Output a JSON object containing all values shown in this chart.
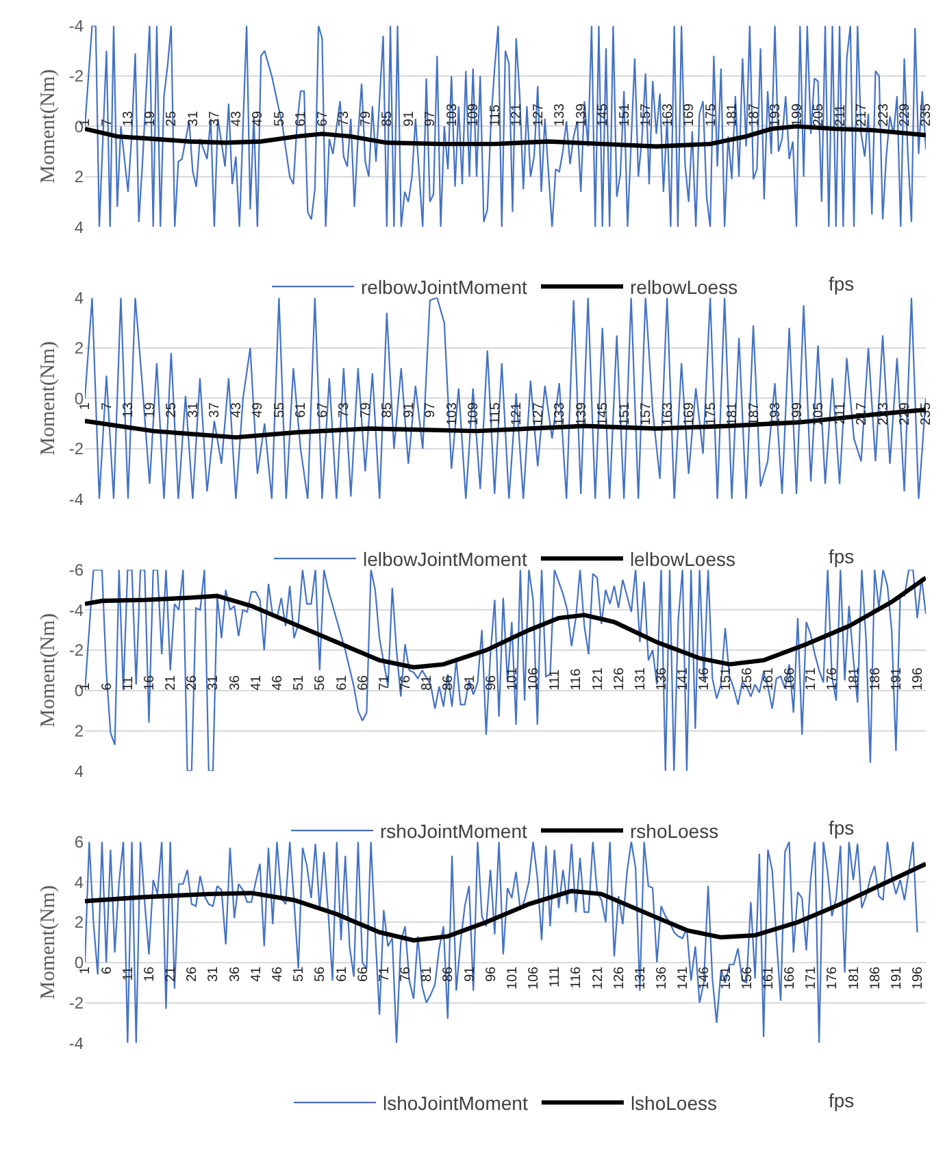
{
  "chart_data": [
    {
      "type": "line",
      "ylabel": "Moment(Nm)",
      "xlabel": "fps",
      "grid": "y",
      "legend": "bottom",
      "xlim": [
        1,
        235
      ],
      "ylim": [
        4,
        -4
      ],
      "yticks": [
        -4,
        -2,
        0,
        2,
        4
      ],
      "xticks": [
        1,
        7,
        13,
        19,
        25,
        31,
        37,
        43,
        49,
        55,
        61,
        67,
        73,
        79,
        85,
        91,
        97,
        103,
        109,
        115,
        121,
        127,
        133,
        139,
        145,
        151,
        157,
        163,
        169,
        175,
        181,
        187,
        193,
        199,
        205,
        211,
        217,
        223,
        229,
        235
      ],
      "series": [
        {
          "name": "relbowJointMoment",
          "color": "#4472c4",
          "x": [
            1,
            3,
            4,
            5,
            6,
            7,
            8,
            9,
            10,
            11,
            13,
            14,
            15,
            16,
            17,
            19,
            20,
            21,
            22,
            23,
            24,
            25,
            26,
            27,
            28,
            30,
            31,
            32,
            33,
            35,
            36,
            37,
            38,
            40,
            41,
            42,
            43,
            44,
            46,
            47,
            48,
            49,
            50,
            51,
            53,
            56,
            58,
            59,
            60,
            61,
            62,
            63,
            64,
            65,
            66,
            67,
            68,
            69,
            70,
            72,
            73,
            74,
            75,
            76,
            77,
            78,
            79,
            80,
            81,
            82,
            84,
            85,
            86,
            87,
            88,
            89,
            90,
            91,
            92,
            93,
            95,
            96,
            97,
            98,
            99,
            100,
            101,
            102,
            103,
            104,
            105,
            106,
            107,
            108,
            109,
            110,
            111,
            112,
            113,
            114,
            115,
            116,
            117,
            118,
            119,
            120,
            121,
            122,
            123,
            124,
            125,
            126,
            127,
            128,
            129,
            131,
            132,
            133,
            134,
            135,
            136,
            137,
            138,
            139,
            140,
            141,
            142,
            143,
            144,
            145,
            146,
            147,
            148,
            149,
            150,
            151,
            152,
            153,
            154,
            155,
            156,
            157,
            158,
            159,
            160,
            161,
            162,
            163,
            164,
            165,
            166,
            167,
            168,
            169,
            170,
            171,
            172,
            173,
            174,
            175,
            176,
            177,
            178,
            179,
            180,
            181,
            182,
            183,
            184,
            185,
            186,
            187,
            188,
            189,
            190,
            191,
            192,
            193,
            194,
            195,
            196,
            197,
            198,
            199,
            200,
            201,
            202,
            203,
            204,
            205,
            206,
            207,
            208,
            209,
            210,
            211,
            212,
            213,
            214,
            215,
            216,
            217,
            218,
            219,
            220,
            221,
            222,
            223,
            224,
            225,
            226,
            227,
            228,
            229,
            230,
            231,
            232,
            233,
            234,
            235
          ],
          "values": [
            0,
            -4,
            -4,
            4,
            0.5,
            -3,
            4,
            -4,
            3.2,
            0,
            2.6,
            0.4,
            -2.9,
            3.8,
            1.5,
            -4,
            4,
            -4,
            4,
            -1.2,
            -2.4,
            -4,
            4,
            1.4,
            1.3,
            -0.2,
            1.8,
            2.4,
            0.5,
            1.3,
            -0.3,
            4,
            -0.3,
            1.6,
            -0.9,
            2.3,
            1.2,
            4,
            -4,
            3.3,
            -0.4,
            4,
            -2.8,
            -3,
            -2,
            0,
            2,
            2.3,
            0,
            -1.4,
            -1.4,
            3.4,
            3.7,
            2.5,
            -4,
            -3.5,
            4,
            0.5,
            1.1,
            -1,
            1.2,
            1.6,
            -0.3,
            3.2,
            0.4,
            -1.7,
            1.4,
            2,
            -0.8,
            1.4,
            -3.6,
            4,
            -4,
            4,
            -4,
            4,
            2.6,
            3,
            2,
            -0.3,
            4,
            -1.9,
            3,
            2.7,
            -2.8,
            4,
            0,
            1.7,
            -2,
            2.4,
            -0.8,
            2.3,
            -2.2,
            2,
            -2.3,
            2,
            -2,
            3.8,
            3.3,
            -0.2,
            -2.3,
            -4,
            4,
            -3,
            -2.5,
            3.4,
            -3.5,
            -1.2,
            2.5,
            -0.8,
            2,
            1.2,
            -1.6,
            2.6,
            -0.3,
            4,
            1.7,
            1.8,
            1,
            -0.2,
            1.5,
            0.4,
            -0.2,
            2.6,
            -1,
            0.8,
            -4,
            4,
            -4,
            4,
            -3.1,
            4,
            -4,
            2.8,
            1.9,
            -1.4,
            4,
            0.6,
            -2.7,
            2,
            0.5,
            -2.1,
            2.3,
            -1.8,
            0.3,
            -1.3,
            2.6,
            -0.3,
            4,
            -4,
            4,
            -4,
            1.5,
            3,
            0.2,
            4,
            -0.5,
            -1,
            2.8,
            4,
            -2.8,
            1.6,
            -2.3,
            4,
            0.4,
            2.1,
            -1.2,
            2,
            -2.7,
            0.8,
            -4,
            2.1,
            1.7,
            -3.1,
            2.9,
            -1.4,
            1.1,
            -4,
            1,
            0.5,
            -1.2,
            1.3,
            0.6,
            4,
            -4,
            2,
            -4,
            0.3,
            -1.9,
            -1.8,
            3,
            -4,
            4,
            -4,
            4,
            -4,
            4,
            -2.7,
            -4,
            4,
            -4,
            0.3,
            1.2,
            -0.5,
            3.5,
            -2.2,
            -2,
            3.7,
            1.2,
            -0.4,
            0.3,
            -1.2,
            4,
            -2.7,
            1.1,
            3.8,
            -3.9,
            1.1,
            -1.4,
            0.9
          ]
        },
        {
          "name": "relbowLoess",
          "color": "#000000",
          "x": [
            1,
            10,
            20,
            30,
            40,
            50,
            60,
            67,
            75,
            85,
            100,
            115,
            130,
            145,
            160,
            175,
            185,
            192,
            199,
            210,
            220,
            235
          ],
          "values": [
            0.1,
            0.4,
            0.5,
            0.6,
            0.65,
            0.6,
            0.4,
            0.3,
            0.4,
            0.65,
            0.7,
            0.7,
            0.6,
            0.7,
            0.8,
            0.7,
            0.4,
            0.1,
            0,
            0.1,
            0.15,
            0.35
          ]
        }
      ]
    },
    {
      "type": "line",
      "ylabel": "Moment(Nm)",
      "xlabel": "fps",
      "grid": "y",
      "legend": "bottom",
      "xlim": [
        1,
        235
      ],
      "ylim": [
        -4,
        4
      ],
      "yticks": [
        -4,
        -2,
        0,
        2,
        4
      ],
      "xticks": [
        1,
        7,
        13,
        19,
        25,
        31,
        37,
        43,
        49,
        55,
        61,
        67,
        73,
        79,
        85,
        91,
        97,
        103,
        109,
        115,
        121,
        127,
        133,
        139,
        145,
        151,
        157,
        163,
        169,
        175,
        181,
        187,
        193,
        199,
        205,
        211,
        217,
        223,
        229,
        235
      ],
      "series": [
        {
          "name": "lelbowJointMoment",
          "color": "#4472c4",
          "x": [
            1,
            3,
            5,
            7,
            9,
            11,
            13,
            15,
            17,
            19,
            21,
            23,
            25,
            27,
            29,
            31,
            33,
            35,
            37,
            39,
            41,
            43,
            45,
            47,
            49,
            51,
            53,
            55,
            57,
            59,
            61,
            63,
            65,
            67,
            69,
            71,
            73,
            75,
            77,
            79,
            81,
            83,
            85,
            87,
            89,
            91,
            93,
            95,
            97,
            99,
            101,
            103,
            105,
            107,
            109,
            111,
            113,
            115,
            117,
            119,
            121,
            123,
            125,
            127,
            129,
            131,
            133,
            135,
            137,
            139,
            141,
            143,
            145,
            147,
            149,
            151,
            153,
            155,
            157,
            159,
            161,
            163,
            165,
            167,
            169,
            171,
            173,
            175,
            177,
            179,
            181,
            183,
            185,
            187,
            189,
            191,
            193,
            195,
            197,
            199,
            201,
            203,
            205,
            207,
            209,
            211,
            213,
            215,
            217,
            219,
            221,
            223,
            225,
            227,
            229,
            231,
            233,
            235
          ],
          "values": [
            0,
            4,
            -4,
            0.9,
            -4,
            4,
            -4,
            4,
            0.5,
            -3.4,
            1.4,
            -4,
            1.8,
            -4,
            0.1,
            -4,
            0.8,
            -3.7,
            -0.9,
            -2.6,
            0.8,
            -4,
            0,
            2,
            -3,
            -1,
            -4,
            4,
            -4,
            1.2,
            -2,
            -4,
            4,
            -4,
            0.8,
            -4,
            1.2,
            -3.9,
            1.2,
            -2.9,
            1,
            -4,
            3.4,
            -2,
            1.2,
            -2.6,
            0.5,
            -2,
            3.9,
            4,
            3,
            -2.8,
            0.4,
            -4,
            0.4,
            -3.6,
            1.9,
            -3.8,
            1.4,
            -4,
            0.2,
            -4,
            0.7,
            -2.7,
            0.5,
            -1.6,
            0.6,
            -4,
            3.9,
            -3.8,
            4,
            -4,
            2.8,
            -4,
            2.5,
            -4,
            4,
            -4,
            4,
            -0.5,
            -3.2,
            4,
            -4,
            1.4,
            -3,
            0.4,
            -2.2,
            4,
            -4,
            4,
            -4,
            2.4,
            -4,
            2.9,
            -3.5,
            -2.5,
            0.6,
            -3.8,
            2.8,
            -3.8,
            3.7,
            -3.3,
            2.1,
            -3.4,
            0.8,
            -3.4,
            1.6,
            -1.6,
            -2.5,
            2,
            -2.5,
            2.5,
            -2.6,
            1.6,
            -3.7,
            4,
            -4,
            0
          ]
        },
        {
          "name": "lelbowLoess",
          "color": "#000000",
          "x": [
            1,
            20,
            43,
            60,
            80,
            110,
            140,
            160,
            180,
            200,
            220,
            235
          ],
          "values": [
            -0.9,
            -1.3,
            -1.55,
            -1.35,
            -1.2,
            -1.3,
            -1.1,
            -1.2,
            -1.1,
            -0.95,
            -0.65,
            -0.45
          ]
        }
      ]
    },
    {
      "type": "line",
      "ylabel": "Moment(Nm)",
      "xlabel": "fps",
      "grid": "y",
      "legend": "bottom",
      "xlim": [
        1,
        198
      ],
      "ylim": [
        4,
        -6
      ],
      "yticks": [
        -6,
        -4,
        -2,
        0,
        2,
        4
      ],
      "xticks": [
        1,
        6,
        11,
        16,
        21,
        26,
        31,
        36,
        41,
        46,
        51,
        56,
        61,
        66,
        71,
        76,
        81,
        86,
        91,
        96,
        101,
        106,
        111,
        116,
        121,
        126,
        131,
        136,
        141,
        146,
        151,
        156,
        161,
        166,
        171,
        176,
        181,
        186,
        191,
        196
      ],
      "series": [
        {
          "name": "rshoJointMoment",
          "color": "#4472c4",
          "x": [
            1,
            3,
            5,
            6,
            7,
            8,
            9,
            10,
            11,
            12,
            13,
            14,
            15,
            16,
            17,
            18,
            19,
            20,
            21,
            22,
            23,
            24,
            25,
            26,
            27,
            28,
            29,
            30,
            31,
            32,
            33,
            34,
            35,
            36,
            37,
            38,
            39,
            40,
            41,
            42,
            43,
            44,
            45,
            46,
            47,
            48,
            49,
            50,
            51,
            52,
            53,
            54,
            55,
            56,
            57,
            58,
            60,
            62,
            64,
            65,
            66,
            67,
            68,
            69,
            70,
            72,
            73,
            74,
            75,
            76,
            77,
            78,
            79,
            80,
            82,
            83,
            84,
            85,
            86,
            87,
            88,
            89,
            90,
            91,
            92,
            93,
            94,
            95,
            96,
            97,
            98,
            99,
            100,
            101,
            102,
            103,
            104,
            105,
            106,
            107,
            108,
            109,
            110,
            111,
            112,
            113,
            114,
            115,
            116,
            117,
            118,
            119,
            120,
            121,
            122,
            123,
            124,
            125,
            126,
            127,
            128,
            129,
            130,
            131,
            132,
            133,
            134,
            135,
            136,
            137,
            138,
            139,
            140,
            141,
            142,
            143,
            144,
            145,
            146,
            147,
            148,
            149,
            150,
            151,
            152,
            153,
            154,
            155,
            156,
            157,
            158,
            159,
            160,
            161,
            162,
            163,
            164,
            165,
            166,
            167,
            168,
            169,
            170,
            171,
            172,
            173,
            174,
            175,
            176,
            177,
            178,
            179,
            180,
            181,
            182,
            183,
            184,
            185,
            186,
            187,
            188,
            189,
            190,
            191,
            192,
            193,
            194,
            195,
            196,
            197,
            198
          ],
          "values": [
            0,
            -6,
            -6,
            -1,
            2.1,
            2.7,
            -6,
            0,
            -6,
            -6,
            -0.3,
            -6,
            -6,
            1.6,
            -6,
            -6,
            -1.8,
            -6,
            -1,
            -4.3,
            -4,
            -6,
            4,
            4,
            -4.1,
            -4,
            -6,
            4,
            4,
            -4.7,
            -2.6,
            -5,
            -4,
            -4.2,
            -2.7,
            -4,
            -3.9,
            -4.9,
            -4.9,
            -4.5,
            -2,
            -5.3,
            -3.7,
            -3.6,
            -4.6,
            -3.2,
            -5.2,
            -2.6,
            -3.3,
            -6,
            -4.3,
            -4.3,
            -6,
            -1,
            -6,
            -5,
            -3.5,
            -2,
            -0.2,
            1,
            1.5,
            1.1,
            -6,
            -5,
            -2.6,
            -0.2,
            -5.1,
            -2,
            0.3,
            -2.3,
            -1,
            -0.9,
            -0.6,
            -1,
            -0.3,
            0.9,
            -0.2,
            0.8,
            -0.8,
            0.8,
            -1.5,
            0.7,
            0.7,
            -0.5,
            0.2,
            -0.4,
            -3,
            2.2,
            -1.8,
            -4.5,
            1.3,
            -4.6,
            -0.4,
            -3.4,
            1.7,
            -6,
            0.5,
            -6,
            -4.5,
            1.7,
            -6,
            -0.7,
            -0.8,
            -6,
            -5.4,
            -4.8,
            -4,
            -2.2,
            -3.6,
            -6,
            -3.2,
            -1.8,
            -5.8,
            -5.6,
            -3.3,
            -5,
            -4.3,
            -5.2,
            -4.1,
            -5.5,
            -4.7,
            -3.9,
            -6,
            -2.4,
            -5.4,
            -1.5,
            -2,
            -0.3,
            -6,
            4,
            -6,
            4,
            -3.5,
            -6,
            4,
            -6,
            1.9,
            -6,
            -0.5,
            -6,
            -0.6,
            0.4,
            -0.3,
            -3.1,
            -0.7,
            -0.1,
            0.7,
            -0.4,
            -0.2,
            0.3,
            -0.3,
            0.1,
            -0.9,
            -0.2,
            0.9,
            -0.6,
            -0.7,
            -0.1,
            -1.3,
            1.1,
            -3.6,
            2.2,
            -3.4,
            -2.8,
            -1.8,
            -1,
            -0.4,
            -6,
            -0.7,
            0.5,
            -6,
            -0.5,
            -4.2,
            -1.6,
            0.6,
            -6,
            -2.5,
            3.6,
            -6,
            -4.1,
            -6,
            -5.2,
            -3,
            3,
            -4.7,
            -4.7,
            -6,
            -6,
            -3.6,
            -5.6,
            -3.8
          ]
        },
        {
          "name": "rshoLoess",
          "color": "#000000",
          "x": [
            1,
            5,
            15,
            25,
            32,
            40,
            50,
            60,
            70,
            78,
            85,
            95,
            105,
            112,
            118,
            125,
            135,
            145,
            152,
            160,
            170,
            180,
            190,
            198
          ],
          "values": [
            -4.3,
            -4.45,
            -4.5,
            -4.6,
            -4.7,
            -4.2,
            -3.3,
            -2.4,
            -1.5,
            -1.15,
            -1.3,
            -2,
            -3,
            -3.6,
            -3.75,
            -3.4,
            -2.4,
            -1.6,
            -1.3,
            -1.5,
            -2.3,
            -3.2,
            -4.4,
            -5.6
          ]
        }
      ]
    },
    {
      "type": "line",
      "ylabel": "Moment(Nm)",
      "xlabel": "fps",
      "grid": "y",
      "legend": "bottom",
      "xlim": [
        1,
        198
      ],
      "ylim": [
        -4,
        6
      ],
      "yticks": [
        -4,
        -2,
        0,
        2,
        4,
        6
      ],
      "xticks": [
        1,
        6,
        11,
        16,
        21,
        26,
        31,
        36,
        41,
        46,
        51,
        56,
        61,
        66,
        71,
        76,
        81,
        86,
        91,
        96,
        101,
        106,
        111,
        116,
        121,
        126,
        131,
        136,
        141,
        146,
        151,
        156,
        161,
        166,
        171,
        176,
        181,
        186,
        191,
        196
      ],
      "series": [
        {
          "name": "lshoJointMoment",
          "color": "#4472c4",
          "x": [
            1,
            2,
            3,
            4,
            5,
            6,
            7,
            8,
            9,
            10,
            11,
            12,
            13,
            14,
            15,
            16,
            17,
            18,
            19,
            20,
            21,
            22,
            23,
            24,
            25,
            26,
            27,
            28,
            29,
            30,
            31,
            32,
            33,
            34,
            35,
            36,
            37,
            38,
            39,
            40,
            41,
            42,
            43,
            44,
            45,
            46,
            47,
            48,
            49,
            50,
            51,
            52,
            53,
            54,
            55,
            56,
            57,
            58,
            59,
            60,
            61,
            62,
            63,
            64,
            65,
            66,
            67,
            68,
            69,
            70,
            71,
            72,
            73,
            74,
            75,
            76,
            77,
            78,
            79,
            80,
            81,
            82,
            83,
            84,
            85,
            86,
            87,
            88,
            89,
            90,
            91,
            92,
            93,
            94,
            95,
            96,
            97,
            98,
            99,
            100,
            101,
            102,
            103,
            104,
            105,
            106,
            107,
            108,
            109,
            110,
            111,
            112,
            113,
            114,
            115,
            116,
            117,
            118,
            119,
            120,
            121,
            122,
            123,
            124,
            125,
            126,
            127,
            128,
            129,
            130,
            131,
            132,
            133,
            134,
            135,
            136,
            137,
            138,
            139,
            140,
            141,
            142,
            143,
            144,
            145,
            146,
            147,
            148,
            149,
            150,
            151,
            152,
            153,
            154,
            155,
            156,
            157,
            158,
            159,
            160,
            161,
            162,
            163,
            164,
            165,
            166,
            167,
            168,
            169,
            170,
            171,
            172,
            173,
            174,
            175,
            176,
            177,
            178,
            179,
            180,
            181,
            182,
            183,
            184,
            185,
            186,
            187,
            188,
            189,
            190,
            191,
            192,
            193,
            194,
            195,
            196
          ],
          "values": [
            0,
            6,
            2,
            -0.6,
            6,
            0,
            5.6,
            0.5,
            4,
            6,
            -4,
            6,
            -4,
            6,
            3,
            0.4,
            4.1,
            3.4,
            6,
            -2.3,
            6,
            -1.3,
            3.9,
            3.9,
            4.6,
            2.9,
            2.8,
            4.3,
            3.3,
            2.9,
            2.8,
            3.8,
            3.6,
            0.9,
            5.7,
            2.2,
            3.9,
            3.6,
            3,
            3,
            4,
            4.9,
            0.8,
            5.7,
            1.9,
            6,
            3.2,
            2.9,
            6,
            3,
            -0.3,
            5.7,
            4.8,
            3.2,
            5.9,
            2.6,
            5.5,
            2.5,
            -0.9,
            6,
            1.1,
            5.3,
            0.8,
            -0.7,
            6,
            0,
            -0.3,
            6,
            1.5,
            -2.6,
            2.6,
            0.8,
            1.2,
            -4,
            1,
            1.8,
            -0.9,
            -1.8,
            1.3,
            -1.2,
            -2,
            -1.6,
            -1.1,
            0.7,
            1.8,
            -2.8,
            5.3,
            -1.4,
            1,
            2.8,
            3.8,
            -1.4,
            6,
            2.3,
            1.8,
            4.6,
            1.4,
            6,
            0.4,
            3.7,
            3.2,
            4.5,
            2.6,
            3.1,
            4,
            6,
            4.2,
            1.1,
            5.8,
            1.8,
            5.6,
            2.7,
            4.6,
            2.9,
            5.9,
            2.5,
            5.2,
            2.5,
            2.5,
            6,
            3.5,
            3.1,
            2,
            6,
            0.3,
            3.3,
            1.9,
            4.5,
            6,
            4.7,
            -1.4,
            6,
            3.8,
            3.7,
            0,
            2.8,
            2.3,
            2,
            1.5,
            1.3,
            1.2,
            1.7,
            -0.9,
            0.8,
            -2,
            -1,
            3.8,
            -0.8,
            -3,
            -0.4,
            -1,
            -0.1,
            -0.1,
            0.7,
            -0.9,
            -1,
            3,
            -0.8,
            5.4,
            -3.7,
            5.6,
            4.6,
            1.2,
            -1.9,
            5.5,
            6,
            0.5,
            3.5,
            3.2,
            0.6,
            4.1,
            6,
            -4,
            6,
            4.5,
            2.3,
            3.2,
            5.8,
            -0.5,
            6,
            4.1,
            5.9,
            2.7,
            3.3,
            4.2,
            4.8,
            3.3,
            3.1,
            6,
            4.3,
            3.4,
            4.1,
            3.1,
            4.5,
            6,
            1.5
          ]
        },
        {
          "name": "lshoLoess",
          "color": "#000000",
          "x": [
            1,
            15,
            30,
            40,
            50,
            60,
            70,
            78,
            86,
            95,
            105,
            115,
            122,
            132,
            142,
            150,
            158,
            168,
            178,
            188,
            198
          ],
          "values": [
            3.05,
            3.25,
            3.4,
            3.45,
            3.1,
            2.4,
            1.5,
            1.1,
            1.3,
            2,
            2.9,
            3.55,
            3.4,
            2.5,
            1.6,
            1.25,
            1.35,
            2,
            2.9,
            3.9,
            4.9
          ]
        }
      ]
    }
  ]
}
